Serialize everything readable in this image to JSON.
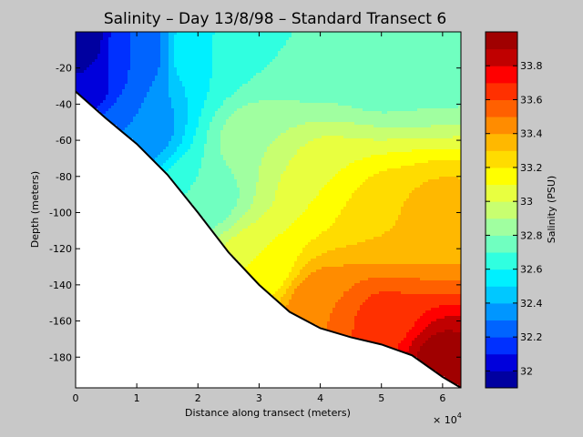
{
  "chart_data": {
    "type": "heatmap",
    "subtype": "filled-contour",
    "title": "Salinity – Day 13/8/98 – Standard Transect 6",
    "xlabel": "Distance along transect (meters)",
    "ylabel": "Depth (meters)",
    "x_exponent_label": "× 10",
    "x_exponent_power": "4",
    "xlim": [
      0,
      6.3
    ],
    "ylim": [
      -197,
      0
    ],
    "x_ticks": [
      0,
      1,
      2,
      3,
      4,
      5,
      6
    ],
    "x_tick_labels": [
      "0",
      "1",
      "2",
      "3",
      "4",
      "5",
      "6"
    ],
    "y_ticks": [
      -20,
      -40,
      -60,
      -80,
      -100,
      -120,
      -140,
      -160,
      -180
    ],
    "y_tick_labels": [
      "-20",
      "-40",
      "-60",
      "-80",
      "-100",
      "-120",
      "-140",
      "-160",
      "-180"
    ],
    "colorbar": {
      "label": "Salinity (PSU)",
      "range": [
        31.9,
        34.0
      ],
      "levels": [
        31.9,
        32.0,
        32.1,
        32.2,
        32.3,
        32.4,
        32.5,
        32.6,
        32.7,
        32.8,
        32.9,
        33.0,
        33.1,
        33.2,
        33.3,
        33.4,
        33.5,
        33.6,
        33.7,
        33.8,
        33.9,
        34.0
      ],
      "colors": [
        "#0000a0",
        "#0000dc",
        "#0030ff",
        "#0064ff",
        "#0096ff",
        "#00c8ff",
        "#00f0ff",
        "#30ffe0",
        "#70ffc0",
        "#a0ffa0",
        "#c8ff70",
        "#e8ff40",
        "#ffff00",
        "#ffdc00",
        "#ffb800",
        "#ff8c00",
        "#ff6000",
        "#ff3000",
        "#ff0000",
        "#c00000",
        "#a00000"
      ],
      "ticks": [
        32.0,
        32.2,
        32.4,
        32.6,
        32.8,
        33.0,
        33.2,
        33.4,
        33.6,
        33.8
      ],
      "tick_labels": [
        "32",
        "32.2",
        "32.4",
        "32.6",
        "32.8",
        "33",
        "33.2",
        "33.4",
        "33.6",
        "33.8"
      ]
    },
    "bottom_profile": {
      "x": [
        0,
        0.5,
        1.0,
        1.5,
        2.0,
        2.5,
        3.0,
        3.5,
        4.0,
        4.5,
        5.0,
        5.5,
        6.0,
        6.3
      ],
      "depth": [
        -33,
        -48,
        -62,
        -79,
        -100,
        -122,
        -140,
        -155,
        -164,
        -169,
        -173,
        -179,
        -191,
        -197
      ]
    },
    "salinity_samples": [
      {
        "x": 0.0,
        "depth": -5,
        "salinity": 31.9
      },
      {
        "x": 0.0,
        "depth": -30,
        "salinity": 32.0
      },
      {
        "x": 1.0,
        "depth": -10,
        "salinity": 32.2
      },
      {
        "x": 1.0,
        "depth": -55,
        "salinity": 32.3
      },
      {
        "x": 2.0,
        "depth": -10,
        "salinity": 32.6
      },
      {
        "x": 2.0,
        "depth": -90,
        "salinity": 32.7
      },
      {
        "x": 3.0,
        "depth": -10,
        "salinity": 32.7
      },
      {
        "x": 3.0,
        "depth": -60,
        "salinity": 32.9
      },
      {
        "x": 3.0,
        "depth": -130,
        "salinity": 33.1
      },
      {
        "x": 4.0,
        "depth": -10,
        "salinity": 32.7
      },
      {
        "x": 4.0,
        "depth": -80,
        "salinity": 33.1
      },
      {
        "x": 4.0,
        "depth": -150,
        "salinity": 33.5
      },
      {
        "x": 5.0,
        "depth": -20,
        "salinity": 32.7
      },
      {
        "x": 5.0,
        "depth": -100,
        "salinity": 33.3
      },
      {
        "x": 5.0,
        "depth": -160,
        "salinity": 33.65
      },
      {
        "x": 6.0,
        "depth": -20,
        "salinity": 32.75
      },
      {
        "x": 6.0,
        "depth": -100,
        "salinity": 33.35
      },
      {
        "x": 6.0,
        "depth": -180,
        "salinity": 33.95
      }
    ]
  }
}
